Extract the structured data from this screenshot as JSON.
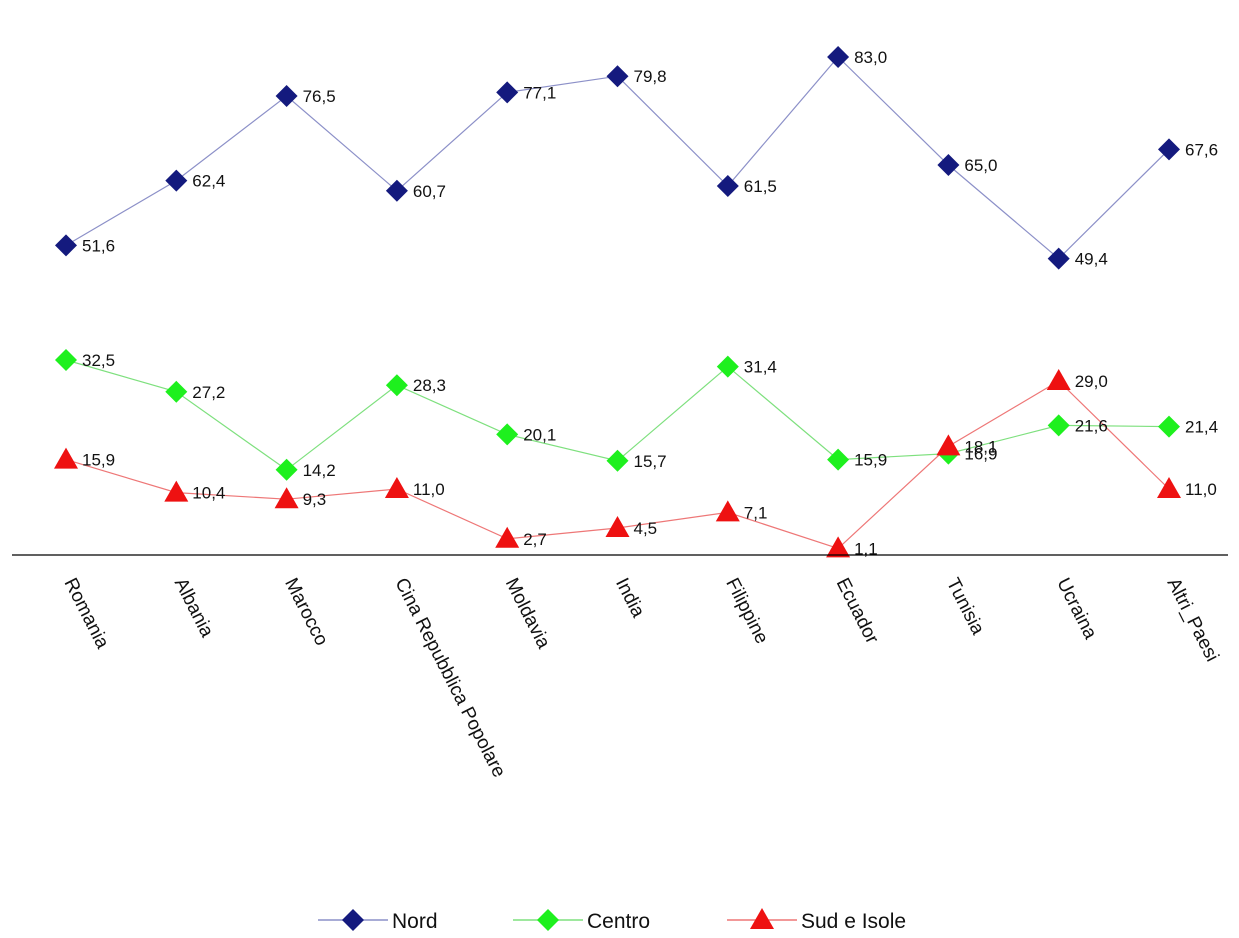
{
  "chart_data": {
    "type": "line",
    "title": "",
    "xlabel": "",
    "ylabel": "",
    "ylim": [
      0,
      90
    ],
    "grid": false,
    "legend_position": "bottom",
    "categories": [
      "Romania",
      "Albania",
      "Marocco",
      "Cina Repubblica Popolare",
      "Moldavia",
      "India",
      "Filippine",
      "Ecuador",
      "Tunisia",
      "Ucraina",
      "Altri_Paesi"
    ],
    "series": [
      {
        "name": "Nord",
        "marker": "diamond",
        "marker_color": "#141A7E",
        "line_color": "#8C90C8",
        "values": [
          51.6,
          62.4,
          76.5,
          60.7,
          77.1,
          79.8,
          61.5,
          83.0,
          65.0,
          49.4,
          67.6
        ],
        "labels": [
          "51,6",
          "62,4",
          "76,5",
          "60,7",
          "77,1",
          "79,8",
          "61,5",
          "83,0",
          "65,0",
          "49,4",
          "67,6"
        ]
      },
      {
        "name": "Centro",
        "marker": "diamond",
        "marker_color": "#1EF01E",
        "line_color": "#7EE07E",
        "values": [
          32.5,
          27.2,
          14.2,
          28.3,
          20.1,
          15.7,
          31.4,
          15.9,
          16.9,
          21.6,
          21.4
        ],
        "labels": [
          "32,5",
          "27,2",
          "14,2",
          "28,3",
          "20,1",
          "15,7",
          "31,4",
          "15,9",
          "16,9",
          "21,6",
          "21,4"
        ]
      },
      {
        "name": "Sud e Isole",
        "marker": "triangle",
        "marker_color": "#EE1111",
        "line_color": "#EE7777",
        "values": [
          15.9,
          10.4,
          9.3,
          11.0,
          2.7,
          4.5,
          7.1,
          1.1,
          18.1,
          29.0,
          11.0
        ],
        "labels": [
          "15,9",
          "10,4",
          "9,3",
          "11,0",
          "2,7",
          "4,5",
          "7,1",
          "1,1",
          "18,1",
          "29,0",
          "11,0"
        ]
      }
    ]
  }
}
